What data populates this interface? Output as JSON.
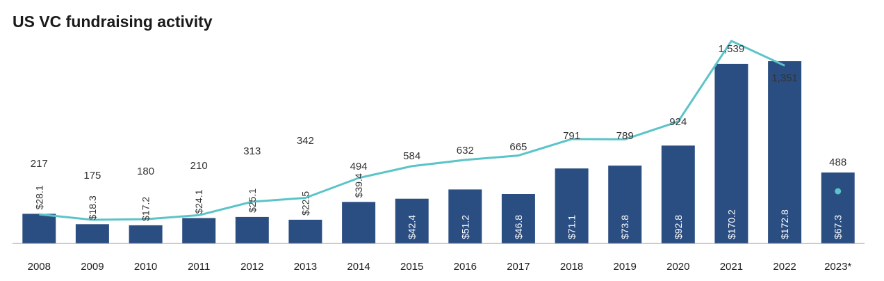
{
  "chart_data": {
    "type": "bar",
    "title": "US VC fundraising activity",
    "categories": [
      "2008",
      "2009",
      "2010",
      "2011",
      "2012",
      "2013",
      "2014",
      "2015",
      "2016",
      "2017",
      "2018",
      "2019",
      "2020",
      "2021",
      "2022",
      "2023*"
    ],
    "series": [
      {
        "type": "bar",
        "values": [
          28.1,
          18.3,
          17.2,
          24.1,
          25.1,
          22.5,
          39.4,
          42.4,
          51.2,
          46.8,
          71.1,
          73.8,
          92.8,
          170.2,
          172.8,
          67.3
        ],
        "labels": [
          "$28.1",
          "$18.3",
          "$17.2",
          "$24.1",
          "$25.1",
          "$22.5",
          "$39.4",
          "$42.4",
          "$51.2",
          "$46.8",
          "$71.1",
          "$73.8",
          "$92.8",
          "$170.2",
          "$172.8",
          "$67.3"
        ]
      },
      {
        "type": "line",
        "values": [
          217,
          175,
          180,
          210,
          313,
          342,
          494,
          584,
          632,
          665,
          791,
          789,
          924,
          1539,
          1351,
          488
        ],
        "labels": [
          "217",
          "175",
          "180",
          "210",
          "313",
          "342",
          "494",
          "584",
          "632",
          "665",
          "791",
          "789",
          "924",
          "1,539",
          "1,351",
          "488"
        ]
      }
    ],
    "xlabel": "",
    "ylabel": "",
    "grid": false,
    "colors": {
      "bar": "#2b4e82",
      "line": "#5bc4c8",
      "baseline": "#9a9a9a"
    }
  }
}
